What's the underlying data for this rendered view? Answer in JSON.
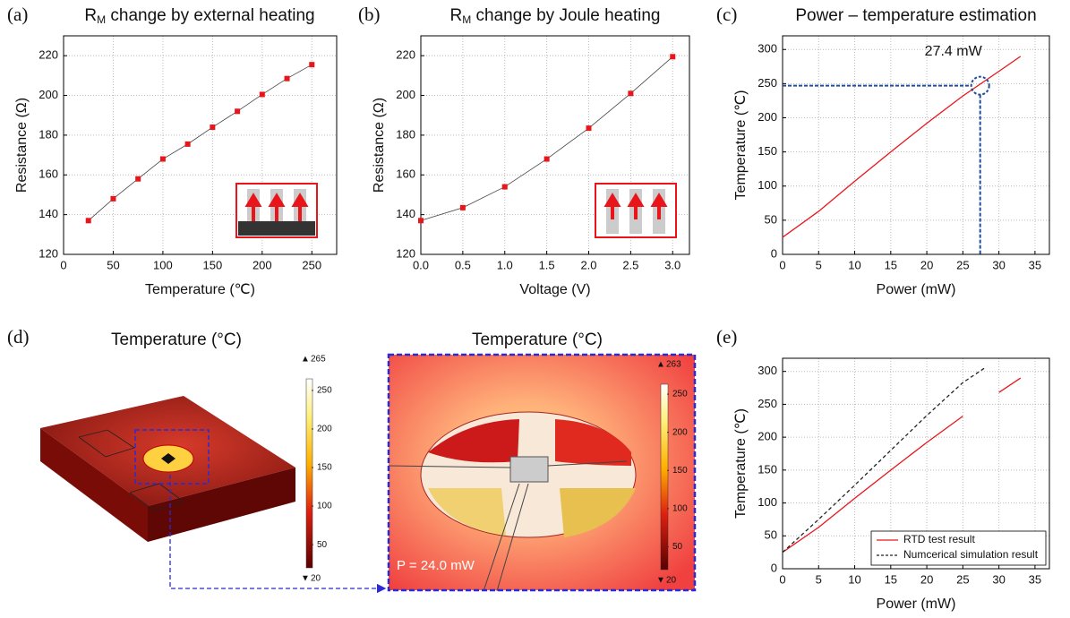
{
  "panel_labels": [
    "(a)",
    "(b)",
    "(c)",
    "(d)",
    "(e)"
  ],
  "simulation": {
    "title_left": "Temperature (°C)",
    "title_right": "Temperature (°C)",
    "power_label": "P = 24.0 mW",
    "colorbar_left": {
      "max": 265,
      "min": 20,
      "ticks": [
        250,
        200,
        150,
        100,
        50
      ]
    },
    "colorbar_right": {
      "max": 263,
      "min": 20,
      "ticks": [
        250,
        200,
        150,
        100,
        50
      ]
    }
  },
  "chart_data": [
    {
      "type": "line",
      "title_symbol": "R",
      "title_subscript": "M",
      "title": " change by external heating",
      "x_label": "Temperature (℃)",
      "y_label": "Resistance (Ω)",
      "x": [
        25,
        50,
        75,
        100,
        125,
        150,
        175,
        200,
        225,
        250
      ],
      "series": [
        {
          "color": "#e8161b",
          "values": [
            137,
            148,
            158,
            168,
            175.5,
            184,
            192,
            200.5,
            208.5,
            215.5
          ]
        }
      ],
      "markers": true,
      "line_color": "#444444",
      "xlim": [
        0,
        275
      ],
      "xticks": [
        0,
        50,
        100,
        150,
        200,
        250
      ],
      "ylim": [
        120,
        230
      ],
      "yticks": [
        120,
        140,
        160,
        180,
        200,
        220
      ],
      "grid": true
    },
    {
      "type": "line",
      "title_symbol": "R",
      "title_subscript": "M",
      "title": " change by Joule heating",
      "x_label": "Voltage (V)",
      "y_label": "Resistance (Ω)",
      "x": [
        0,
        0.5,
        1,
        1.5,
        2,
        2.5,
        3
      ],
      "series": [
        {
          "color": "#e8161b",
          "values": [
            137,
            143.5,
            154,
            168,
            183.5,
            201,
            219.5
          ]
        }
      ],
      "markers": true,
      "line_color": "#444444",
      "xlim": [
        0,
        3.2
      ],
      "xticks": [
        {
          "value": 0,
          "label": "0.0"
        },
        0.5,
        {
          "value": 1,
          "label": "1.0"
        },
        1.5,
        {
          "value": 2,
          "label": "2.0"
        },
        2.5,
        {
          "value": 3,
          "label": "3.0"
        }
      ],
      "ylim": [
        120,
        230
      ],
      "yticks": [
        120,
        140,
        160,
        180,
        200,
        220
      ],
      "grid": true
    },
    {
      "type": "line",
      "title": "Power – temperature estimation",
      "x_label": "Power (mW)",
      "y_label": "Temperature (℃)",
      "x": [
        0,
        5,
        10,
        15,
        20,
        25,
        30,
        33
      ],
      "series": [
        {
          "color": "#e8161b",
          "values": [
            25,
            63,
            107,
            150,
            192,
            232,
            268,
            290
          ]
        }
      ],
      "annotations": [
        {
          "text": "27.4 mW",
          "x": 27.4,
          "y": 247,
          "color": "#1f4e9c"
        }
      ],
      "xlim": [
        0,
        37
      ],
      "xticks": [
        0,
        5,
        10,
        15,
        20,
        25,
        30,
        35
      ],
      "ylim": [
        0,
        320
      ],
      "yticks": [
        0,
        50,
        100,
        150,
        200,
        250,
        300
      ],
      "grid": true
    },
    {
      "type": "line",
      "x_label": "Power (mW)",
      "y_label": "Temperature (℃)",
      "x": [
        0,
        5,
        10,
        15,
        20,
        25,
        28,
        30,
        33
      ],
      "series": [
        {
          "name": "RTD test result",
          "color": "#e8161b",
          "values": [
            25,
            63,
            107,
            150,
            192,
            232,
            null,
            268,
            290
          ]
        },
        {
          "name": "Numcerical simulation result",
          "color": "#222222",
          "line_style": "dashed",
          "values": [
            25,
            75,
            127,
            180,
            233,
            283,
            305,
            null,
            null
          ]
        }
      ],
      "legend": "lower right",
      "xlim": [
        0,
        37
      ],
      "xticks": [
        0,
        5,
        10,
        15,
        20,
        25,
        30,
        35
      ],
      "ylim": [
        0,
        320
      ],
      "yticks": [
        0,
        50,
        100,
        150,
        200,
        250,
        300
      ],
      "grid": true
    }
  ]
}
